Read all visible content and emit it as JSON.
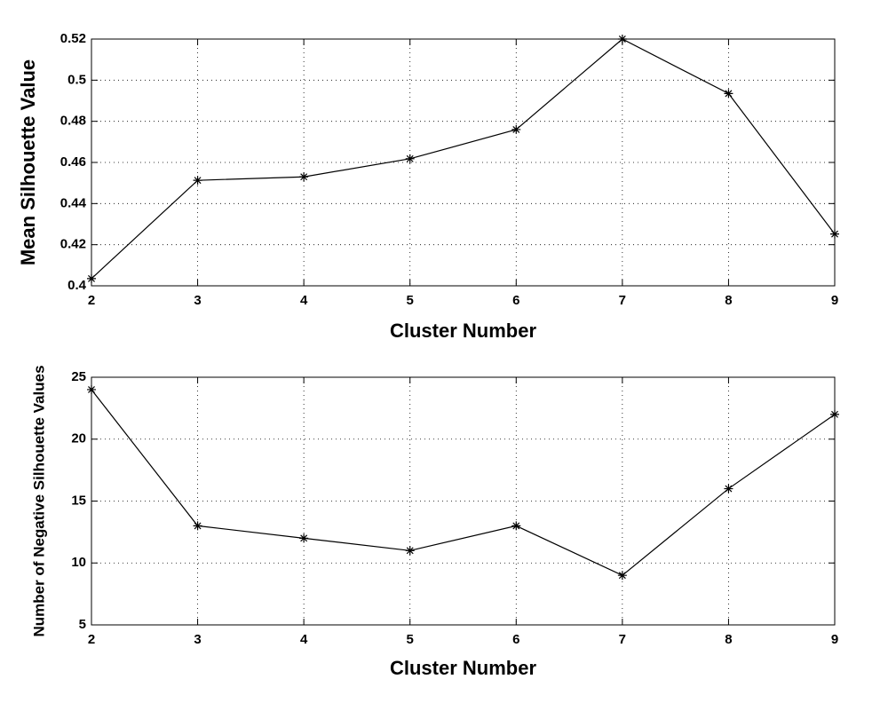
{
  "chart_data": [
    {
      "type": "line",
      "xlabel": "Cluster Number",
      "ylabel": "Mean Silhouette Value",
      "x": [
        2,
        3,
        4,
        5,
        6,
        7,
        8,
        9
      ],
      "values": [
        0.4035,
        0.4513,
        0.453,
        0.4618,
        0.476,
        0.52,
        0.4935,
        0.4252
      ],
      "color": "#000000",
      "marker": "asterisk",
      "xlim": [
        2,
        9
      ],
      "xticks": [
        2,
        3,
        4,
        5,
        6,
        7,
        8,
        9
      ],
      "ylim": [
        0.4,
        0.52
      ],
      "yticks": [
        0.4,
        0.42,
        0.44,
        0.46,
        0.48,
        0.5,
        0.52
      ],
      "grid": true
    },
    {
      "type": "line",
      "xlabel": "Cluster Number",
      "ylabel": "Number of Negative Silhouette Values",
      "x": [
        2,
        3,
        4,
        5,
        6,
        7,
        8,
        9
      ],
      "values": [
        24,
        13,
        12,
        11,
        13,
        9,
        16,
        22
      ],
      "color": "#000000",
      "marker": "asterisk",
      "xlim": [
        2,
        9
      ],
      "xticks": [
        2,
        3,
        4,
        5,
        6,
        7,
        8,
        9
      ],
      "ylim": [
        5,
        25
      ],
      "yticks": [
        5,
        10,
        15,
        20,
        25
      ],
      "grid": true
    }
  ]
}
